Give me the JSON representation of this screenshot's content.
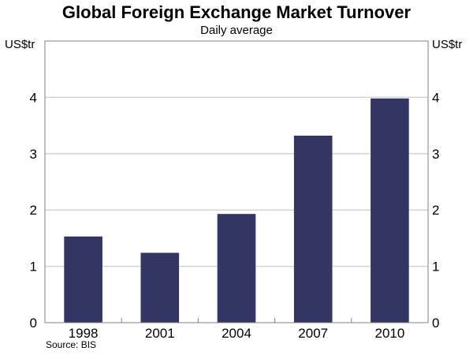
{
  "chart_data": {
    "type": "bar",
    "title": "Global Foreign Exchange Market Turnover",
    "subtitle": "Daily average",
    "ylabel_left": "US$tr",
    "ylabel_right": "US$tr",
    "categories": [
      "1998",
      "2001",
      "2004",
      "2007",
      "2010"
    ],
    "values": [
      1.53,
      1.24,
      1.93,
      3.32,
      3.98
    ],
    "ylim": [
      0,
      5
    ],
    "yticks": [
      0,
      1,
      2,
      3,
      4
    ],
    "grid": true,
    "source": "Source: BIS",
    "colors": {
      "bar": "#333562",
      "grid": "#d4d4d4",
      "axis": "#808080"
    }
  }
}
